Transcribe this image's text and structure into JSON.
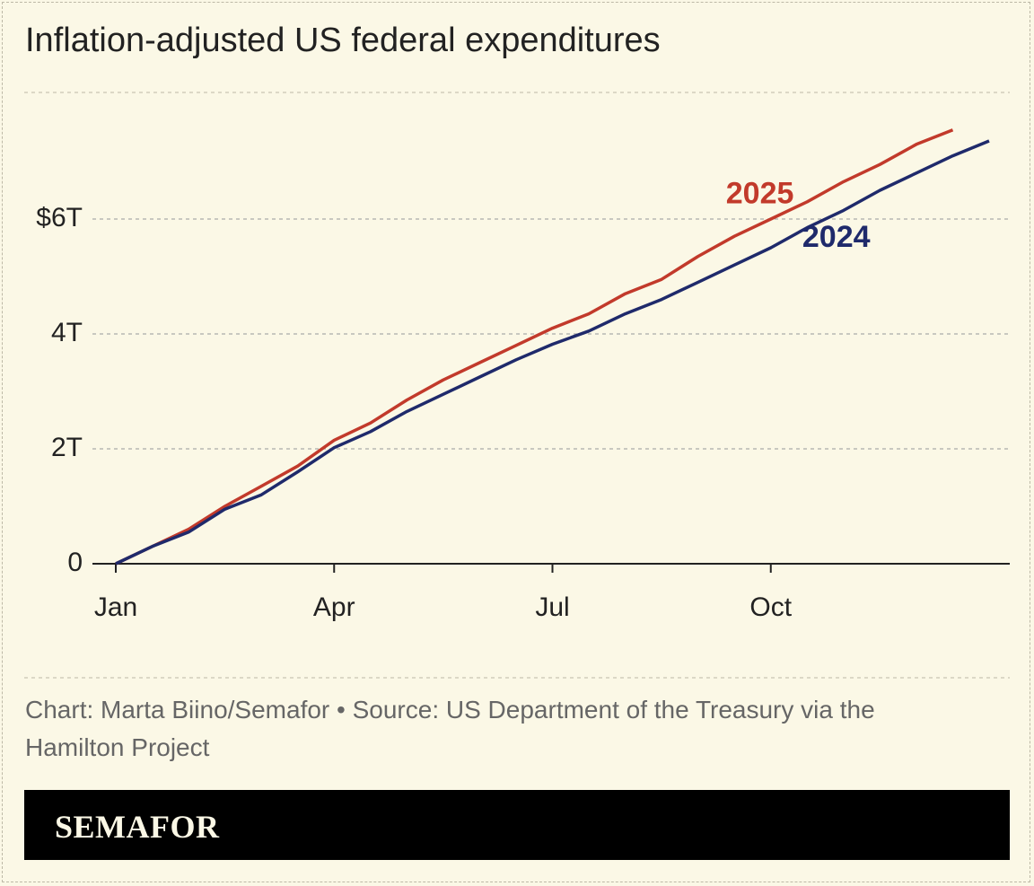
{
  "chart_data": {
    "type": "line",
    "title": "Inflation-adjusted US federal expenditures",
    "categories": [
      "Jan",
      null,
      null,
      null,
      null,
      null,
      "Apr",
      null,
      null,
      null,
      null,
      null,
      "Jul",
      null,
      null,
      null,
      null,
      null,
      "Oct",
      null,
      null,
      null,
      null,
      null,
      null
    ],
    "series": [
      {
        "name": "2025",
        "color": "#c23a2b",
        "values": [
          0,
          0.3,
          0.6,
          1.0,
          1.35,
          1.7,
          2.15,
          2.45,
          2.85,
          3.2,
          3.5,
          3.8,
          4.1,
          4.35,
          4.7,
          4.95,
          5.35,
          5.7,
          6.0,
          6.3,
          6.65,
          6.95,
          7.3,
          7.55,
          null
        ]
      },
      {
        "name": "2024",
        "color": "#1f2a6b",
        "values": [
          0,
          0.3,
          0.55,
          0.95,
          1.2,
          1.6,
          2.02,
          2.3,
          2.65,
          2.95,
          3.25,
          3.55,
          3.82,
          4.05,
          4.35,
          4.6,
          4.9,
          5.2,
          5.5,
          5.85,
          6.15,
          6.5,
          6.8,
          7.1,
          7.36
        ]
      }
    ],
    "ylim": [
      0,
      8
    ],
    "yticks": [
      0,
      {
        "value": 2,
        "label": "2T"
      },
      {
        "value": 4,
        "label": "4T"
      },
      {
        "value": 6,
        "label": "$6T"
      }
    ],
    "grid": true
  },
  "footer": {
    "source": "Chart: Marta Biino/Semafor • Source: US Department of the Treasury via the Hamilton Project",
    "brand": "SEMAFOR"
  }
}
